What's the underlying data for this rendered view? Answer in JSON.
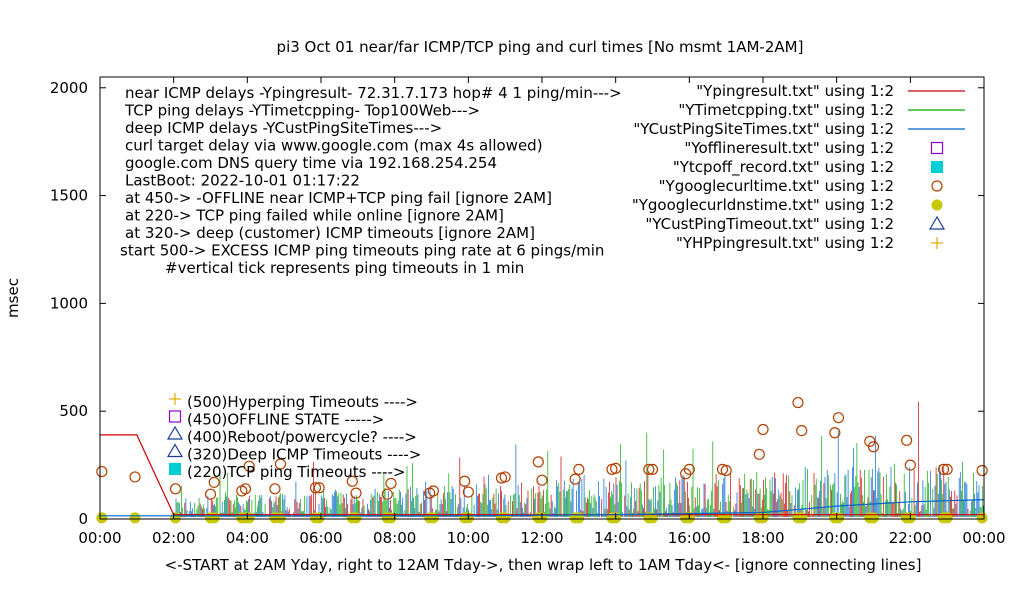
{
  "chart_data": {
    "type": "line",
    "title": "pi3 Oct 01  near/far ICMP/TCP ping and curl times [No msmt 1AM-2AM]",
    "ylabel": "msec",
    "xlabel": "<-START at 2AM Yday, right to 12AM Tday->, then wrap left to 1AM Tday<- [ignore connecting lines]",
    "xlim": [
      0,
      24
    ],
    "ylim": [
      0,
      2050
    ],
    "x_ticks": [
      "00:00",
      "02:00",
      "04:00",
      "06:00",
      "08:00",
      "10:00",
      "12:00",
      "14:00",
      "16:00",
      "18:00",
      "20:00",
      "22:00",
      "00:00"
    ],
    "y_ticks": [
      0,
      500,
      1000,
      1500,
      2000
    ],
    "annotations": [
      "near ICMP delays -Ypingresult- 72.31.7.173 hop# 4 1 ping/min--->",
      "TCP ping delays -YTimetcpping- Top100Web--->",
      "deep ICMP delays -YCustPingSiteTimes--->",
      "curl target delay via www.google.com (max 4s allowed)",
      "google.com DNS query time via 192.168.254.254",
      "LastBoot: 2022-10-01 01:17:22",
      "at 450-> -OFFLINE near ICMP+TCP ping fail [ignore 2AM]",
      "at 220-> TCP ping failed while online [ignore 2AM]",
      "at 320-> deep (customer) ICMP timeouts [ignore 2AM]",
      "start 500-> EXCESS ICMP ping timeouts ping rate at 6 pings/min",
      "#vertical tick represents ping timeouts in 1 min"
    ],
    "marker_key": [
      "(500)Hyperping Timeouts ---->",
      "(450)OFFLINE STATE ----->",
      "(400)Reboot/powercycle? ---->",
      "(320)Deep ICMP Timeouts ---->",
      "(220)TCP ping Timeouts ---->"
    ],
    "legend": [
      {
        "name": "\"Ypingresult.txt\" using 1:2",
        "style": "line",
        "color": "#cc0000"
      },
      {
        "name": "\"YTimetcpping.txt\" using 1:2",
        "style": "line",
        "color": "#00aa00"
      },
      {
        "name": "\"YCustPingSiteTimes.txt\" using 1:2",
        "style": "line",
        "color": "#0066cc"
      },
      {
        "name": "\"Yofflineresult.txt\" using 1:2",
        "style": "open-square",
        "color": "#9400d3"
      },
      {
        "name": "\"Ytcpoff_record.txt\" using 1:2",
        "style": "filled-square",
        "color": "#00cfd8"
      },
      {
        "name": "\"Ygooglecurltime.txt\" using 1:2",
        "style": "open-circle",
        "color": "#b44000"
      },
      {
        "name": "\"Ygooglecurldnstime.txt\" using 1:2",
        "style": "filled-circle",
        "color": "#c8c800"
      },
      {
        "name": "\"YCustPingTimeout.txt\" using 1:2",
        "style": "open-triangle",
        "color": "#1a3c9c"
      },
      {
        "name": "\"YHPpingresult.txt\" using 1:2",
        "style": "plus",
        "color": "#e6a800"
      }
    ],
    "series": [
      {
        "name": "\"Ygooglecurltime.txt\" using 1:2",
        "style": "open-circle",
        "x": [
          0.05,
          0.95,
          2.05,
          3.0,
          3.1,
          3.85,
          3.95,
          4.05,
          4.75,
          4.9,
          5.85,
          5.95,
          6.85,
          6.95,
          7.8,
          7.9,
          8.95,
          9.05,
          9.9,
          10.0,
          10.9,
          11.0,
          11.9,
          12.0,
          12.9,
          13.0,
          13.9,
          14.0,
          14.9,
          15.0,
          15.9,
          16.0,
          16.9,
          17.0,
          17.9,
          18.0,
          18.95,
          19.05,
          19.95,
          20.05,
          20.9,
          21.0,
          21.9,
          22.0,
          22.9,
          23.0,
          23.95
        ],
        "y": [
          220,
          195,
          140,
          115,
          170,
          130,
          140,
          245,
          140,
          255,
          145,
          145,
          175,
          120,
          115,
          165,
          120,
          130,
          175,
          125,
          190,
          195,
          265,
          180,
          185,
          230,
          230,
          235,
          230,
          230,
          210,
          230,
          230,
          225,
          300,
          415,
          540,
          410,
          400,
          470,
          360,
          335,
          365,
          250,
          230,
          230,
          225
        ]
      },
      {
        "name": "\"Ygooglecurldnstime.txt\" using 1:2",
        "style": "filled-circle",
        "x": [
          0.05,
          0.95,
          2.05,
          3.0,
          3.1,
          3.85,
          3.95,
          4.05,
          4.75,
          4.9,
          5.85,
          5.95,
          6.85,
          6.95,
          7.8,
          7.9,
          8.95,
          9.05,
          9.9,
          10.0,
          10.9,
          11.0,
          11.9,
          12.0,
          12.9,
          13.0,
          13.9,
          14.0,
          14.9,
          15.0,
          15.9,
          16.0,
          16.9,
          17.0,
          17.9,
          18.0,
          18.95,
          19.05,
          19.95,
          20.05,
          20.9,
          21.0,
          21.9,
          22.0,
          22.9,
          23.0,
          23.95
        ],
        "y": [
          5,
          5,
          5,
          5,
          5,
          5,
          5,
          5,
          5,
          5,
          5,
          5,
          5,
          5,
          5,
          5,
          5,
          5,
          5,
          5,
          5,
          5,
          5,
          5,
          5,
          5,
          5,
          5,
          5,
          5,
          5,
          5,
          5,
          5,
          5,
          5,
          5,
          5,
          5,
          5,
          5,
          5,
          5,
          5,
          5,
          5,
          5
        ]
      },
      {
        "name": "\"Ypingresult.txt\" using 1:2",
        "style": "line",
        "x": [
          0.0,
          0.98,
          1.0,
          2.0,
          2.1,
          6.0,
          10.0,
          14.0,
          18.0,
          24.0
        ],
        "y": [
          390,
          390,
          390,
          20,
          20,
          20,
          20,
          20,
          20,
          20
        ]
      },
      {
        "name": "\"YCustPingSiteTimes.txt\" using 1:2",
        "style": "line",
        "x": [
          0.0,
          1.0,
          2.0,
          6.0,
          10.0,
          14.0,
          18.0,
          20.0,
          22.0,
          24.0
        ],
        "y": [
          15,
          15,
          15,
          15,
          15,
          20,
          30,
          60,
          80,
          90
        ]
      }
    ]
  }
}
